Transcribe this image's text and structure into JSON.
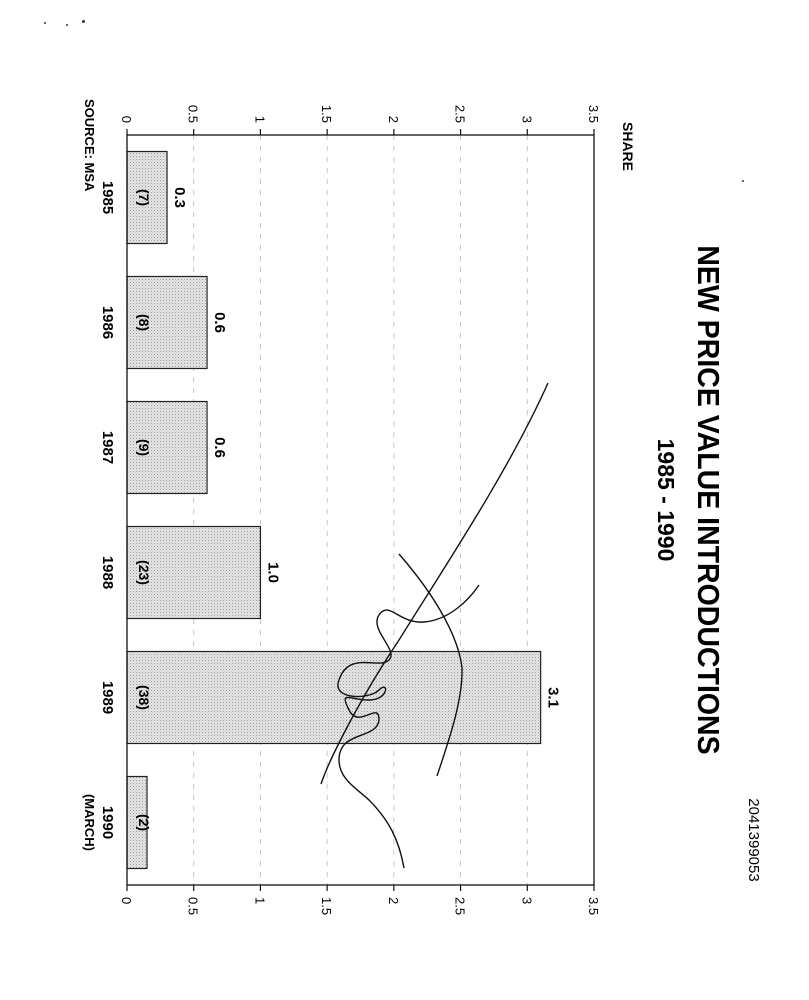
{
  "document_id": "2041399053",
  "source_note": "SOURCE: MSA",
  "chart_data": {
    "type": "bar",
    "title": "NEW PRICE VALUE INTRODUCTIONS",
    "subtitle": "1985 - 1990",
    "ylabel": "SHARE",
    "xlabel": "",
    "categories": [
      "1985",
      "1986",
      "1987",
      "1988",
      "1989",
      "1990"
    ],
    "category_sublabels": [
      "",
      "",
      "",
      "",
      "",
      "(MARCH)"
    ],
    "values": [
      0.3,
      0.6,
      0.6,
      1.0,
      3.1,
      0.15
    ],
    "value_labels": [
      "0.3",
      "0.6",
      "0.6",
      "1.0",
      "3.1",
      ""
    ],
    "counts": [
      "(7)",
      "(8)",
      "(9)",
      "(23)",
      "(38)",
      "(2)"
    ],
    "ylim": [
      0,
      3.5
    ],
    "yticks": [
      "0",
      "0.5",
      "1",
      "1.5",
      "2",
      "2.5",
      "3",
      "3.5"
    ],
    "ytick_values": [
      0,
      0.5,
      1,
      1.5,
      2,
      2.5,
      3,
      3.5
    ],
    "grid": true,
    "bar_color": "#d9d9d9"
  }
}
